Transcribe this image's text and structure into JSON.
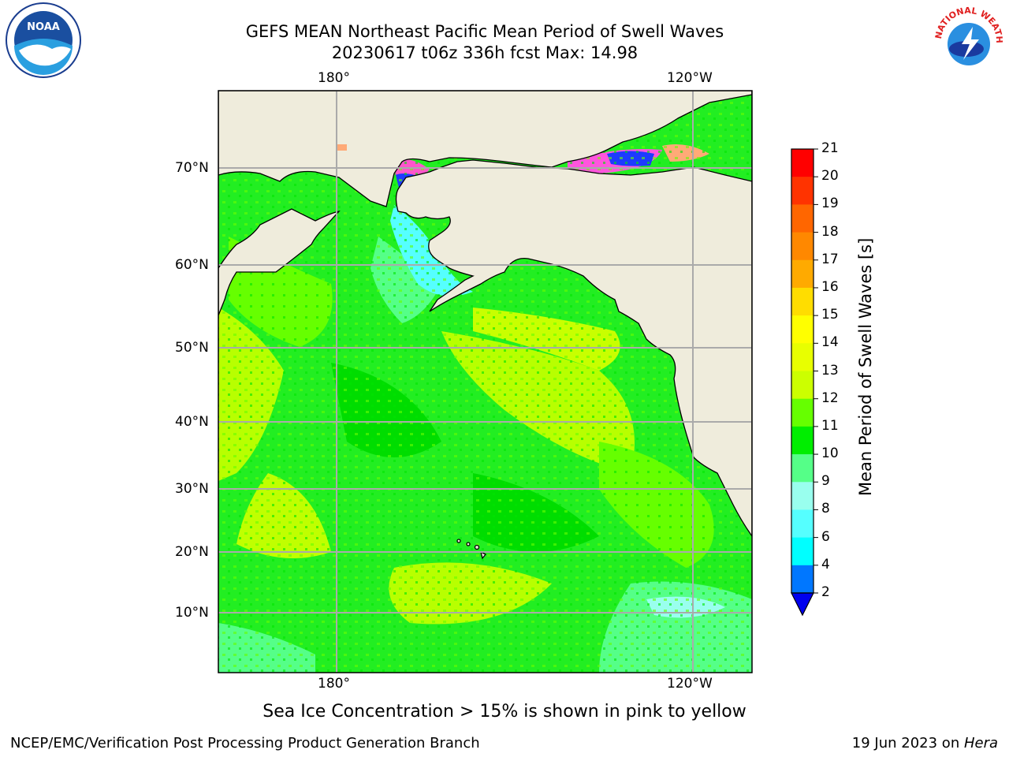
{
  "title_line1": "GEFS MEAN Northeast Pacific Mean Period of Swell Waves",
  "title_line2": "20230617 t06z 336h fcst   Max: 14.98",
  "logos": {
    "left": {
      "name": "noaa-logo",
      "text": "NOAA"
    },
    "right": {
      "name": "nws-logo",
      "text": "NATIONAL WEATHER SERVICE"
    }
  },
  "map": {
    "lon_ticks_top": [
      "180°",
      "120°W"
    ],
    "lon_ticks_bottom": [
      "180°",
      "120°W"
    ],
    "lat_ticks": [
      "70°N",
      "60°N",
      "50°N",
      "40°N",
      "30°N",
      "20°N",
      "10°N"
    ],
    "colors": {
      "land": "#efecdc",
      "ocean_base": "#33f03a",
      "grid": "#aaaaaa",
      "coast": "#000000"
    }
  },
  "colorbar": {
    "title": "Mean Period of Swell Waves [s]",
    "labels": [
      "21",
      "20",
      "19",
      "18",
      "17",
      "16",
      "15",
      "14",
      "13",
      "12",
      "11",
      "10",
      "9",
      "8",
      "6",
      "4",
      "2"
    ],
    "colors": [
      "#ff0000",
      "#ff3300",
      "#ff6600",
      "#ff8800",
      "#ffaa00",
      "#ffdd00",
      "#ffff00",
      "#e8ff00",
      "#ccff00",
      "#66ff00",
      "#00ee00",
      "#55ff88",
      "#99ffee",
      "#55ffff",
      "#00ffff",
      "#0077ff",
      "#0000ee"
    ]
  },
  "caption": "Sea Ice Concentration > 15% is shown in pink to yellow",
  "footer_left": "NCEP/EMC/Verification Post Processing Product Generation Branch",
  "footer_right_prefix": "19 Jun 2023 on ",
  "footer_right_host": "Hera"
}
